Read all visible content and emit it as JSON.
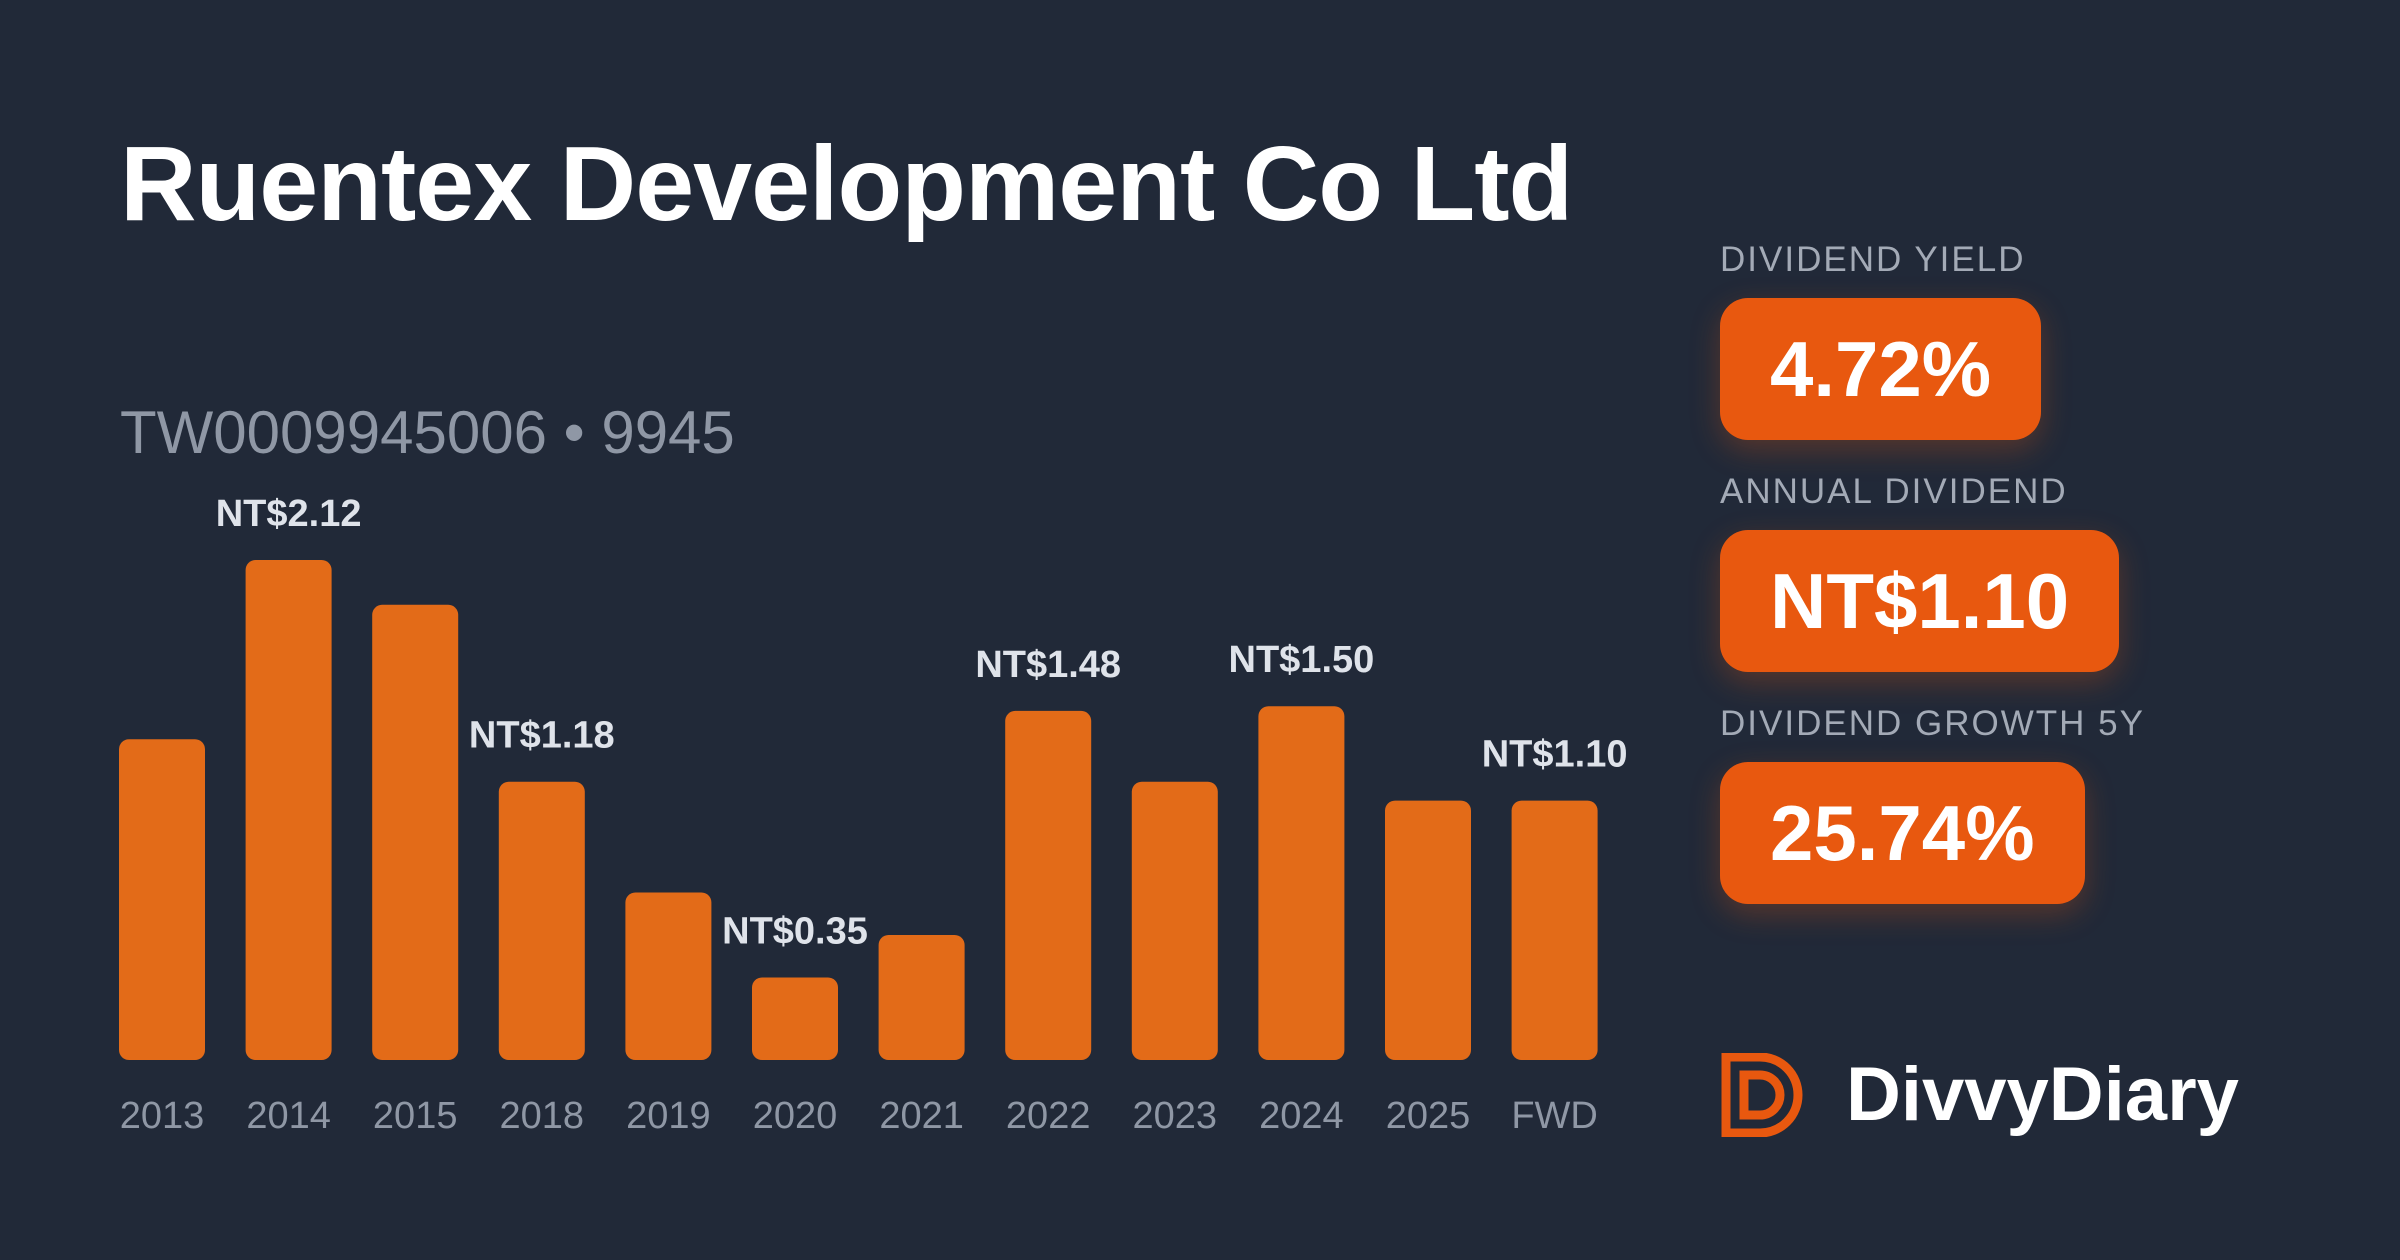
{
  "header": {
    "title": "Ruentex Development Co Ltd",
    "subtitle": "TW0009945006 • 9945"
  },
  "colors": {
    "background": "#212938",
    "bar": "#e36b18",
    "pill": "#e8580f"
  },
  "stats": [
    {
      "label": "DIVIDEND YIELD",
      "value": "4.72%"
    },
    {
      "label": "ANNUAL DIVIDEND",
      "value": "NT$1.10"
    },
    {
      "label": "DIVIDEND GROWTH 5Y",
      "value": "25.74%"
    }
  ],
  "brand": {
    "name": "DivvyDiary",
    "logo_icon": "divvydiary-logo-icon"
  },
  "chart_data": {
    "type": "bar",
    "title": "",
    "xlabel": "",
    "ylabel": "",
    "categories": [
      "2013",
      "2014",
      "2015",
      "2018",
      "2019",
      "2020",
      "2021",
      "2022",
      "2023",
      "2024",
      "2025",
      "FWD"
    ],
    "values": [
      1.36,
      2.12,
      1.93,
      1.18,
      0.71,
      0.35,
      0.53,
      1.48,
      1.18,
      1.5,
      1.1,
      1.1
    ],
    "data_labels": [
      "",
      "NT$2.12",
      "",
      "NT$1.18",
      "",
      "NT$0.35",
      "",
      "NT$1.48",
      "",
      "NT$1.50",
      "",
      "NT$1.10"
    ],
    "ylim": [
      0,
      2.12
    ],
    "grid": false,
    "legend": "none"
  }
}
